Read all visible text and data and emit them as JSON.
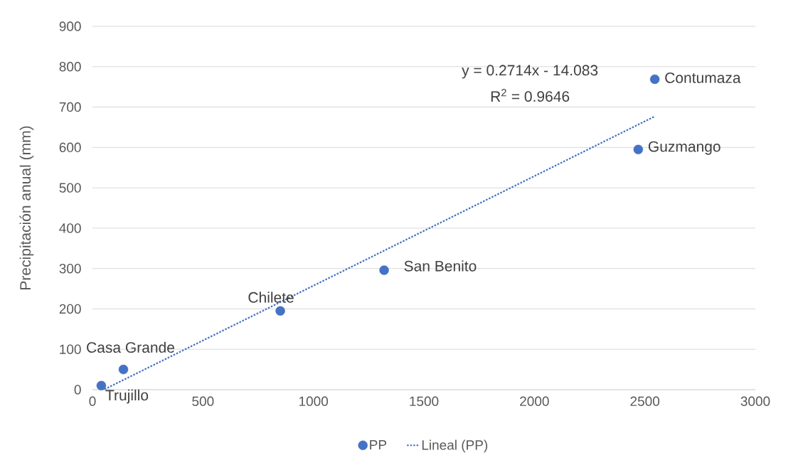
{
  "chart_data": {
    "type": "scatter",
    "ylabel": "Precipitación anual (mm)",
    "xlim": [
      0,
      3000
    ],
    "xticks": [
      0,
      500,
      1000,
      1500,
      2000,
      2500,
      3000
    ],
    "ylim": [
      0,
      900
    ],
    "yticks": [
      0,
      100,
      200,
      300,
      400,
      500,
      600,
      700,
      800,
      900
    ],
    "grid": "y",
    "legend": "bottom",
    "marker": "circle",
    "series": [
      {
        "name": "PP",
        "color": "#4472c4",
        "x": [
          40,
          140,
          850,
          1320,
          2470,
          2545
        ],
        "values": [
          10,
          50,
          195,
          296,
          595,
          769
        ]
      },
      {
        "name": "Lineal (PP)",
        "type": "line",
        "marker": "none",
        "line_style": "dotted",
        "color": "#4472c4",
        "x": [
          55,
          2545
        ],
        "values": [
          1,
          677
        ]
      }
    ],
    "annotations": [
      "y = 0.2714x - 14.083",
      "R$^{2}$ = 0.9646",
      {
        "text": "Trujillo",
        "x": 40,
        "y": 10
      },
      {
        "text": "Casa Grande",
        "x": 140,
        "y": 50
      },
      {
        "text": "Chilete",
        "x": 850,
        "y": 195
      },
      {
        "text": "San Benito",
        "x": 1320,
        "y": 296
      },
      {
        "text": "Guzmango",
        "x": 2470,
        "y": 595
      },
      {
        "text": "Contumaza",
        "x": 2545,
        "y": 769
      }
    ]
  }
}
